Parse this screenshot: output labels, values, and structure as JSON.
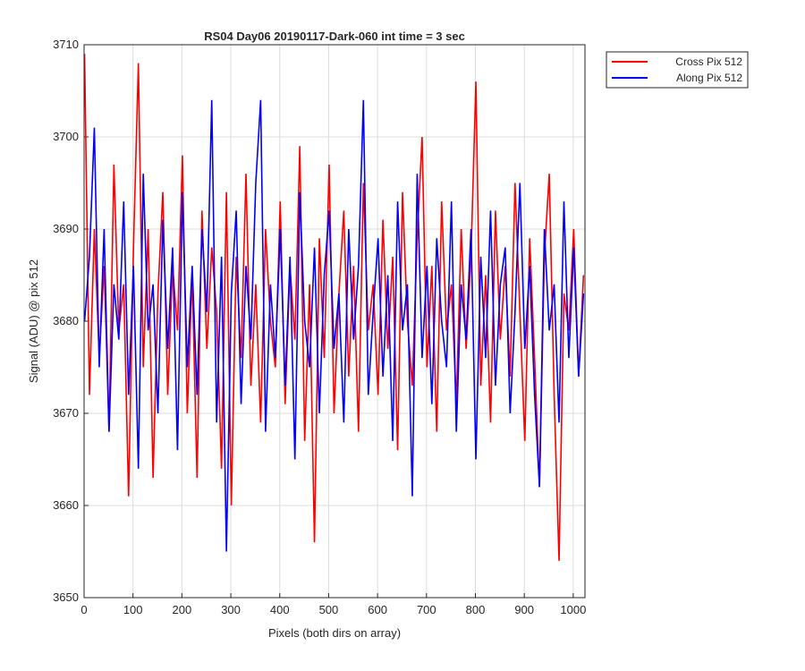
{
  "chart_data": {
    "type": "line",
    "title": "RS04 Day06 20190117-Dark-060 int time = 3 sec",
    "x_label": "Pixels (both dirs on array)",
    "y_label": "Signal (ADU) @ pix 512",
    "x": [
      1,
      11,
      21,
      31,
      41,
      51,
      61,
      71,
      81,
      91,
      101,
      111,
      121,
      131,
      141,
      151,
      161,
      171,
      181,
      191,
      201,
      211,
      221,
      231,
      241,
      251,
      261,
      271,
      281,
      291,
      301,
      311,
      321,
      331,
      341,
      351,
      361,
      371,
      381,
      391,
      401,
      411,
      421,
      431,
      441,
      451,
      461,
      471,
      481,
      491,
      501,
      511,
      521,
      531,
      541,
      551,
      561,
      571,
      581,
      591,
      601,
      611,
      621,
      631,
      641,
      651,
      661,
      671,
      681,
      691,
      701,
      711,
      721,
      731,
      741,
      751,
      761,
      771,
      781,
      791,
      801,
      811,
      821,
      831,
      841,
      851,
      861,
      871,
      881,
      891,
      901,
      911,
      921,
      931,
      941,
      951,
      961,
      971,
      981,
      991,
      1001,
      1011,
      1021
    ],
    "series": [
      {
        "name": "Cross Pix 512",
        "color": "#ff0000",
        "values": [
          3709,
          3672,
          3690,
          3676,
          3686,
          3668,
          3697,
          3679,
          3684,
          3661,
          3688,
          3708,
          3675,
          3690,
          3663,
          3683,
          3694,
          3672,
          3686,
          3679,
          3698,
          3670,
          3685,
          3663,
          3692,
          3677,
          3688,
          3681,
          3664,
          3694,
          3660,
          3687,
          3676,
          3696,
          3673,
          3684,
          3669,
          3690,
          3680,
          3675,
          3693,
          3671,
          3686,
          3678,
          3699,
          3667,
          3684,
          3656,
          3689,
          3676,
          3697,
          3670,
          3683,
          3692,
          3674,
          3686,
          3668,
          3695,
          3679,
          3684,
          3672,
          3691,
          3677,
          3687,
          3666,
          3694,
          3680,
          3673,
          3689,
          3700,
          3675,
          3686,
          3668,
          3693,
          3679,
          3684,
          3671,
          3690,
          3677,
          3687,
          3706,
          3673,
          3685,
          3669,
          3692,
          3678,
          3686,
          3674,
          3695,
          3681,
          3667,
          3689,
          3676,
          3662,
          3687,
          3696,
          3672,
          3654,
          3683,
          3679,
          3690,
          3674,
          3685
        ]
      },
      {
        "name": "Along Pix 512",
        "color": "#0000ff",
        "values": [
          3680,
          3687,
          3701,
          3675,
          3690,
          3668,
          3684,
          3678,
          3693,
          3672,
          3686,
          3664,
          3696,
          3679,
          3684,
          3670,
          3691,
          3677,
          3688,
          3666,
          3694,
          3675,
          3686,
          3672,
          3690,
          3681,
          3704,
          3669,
          3687,
          3655,
          3683,
          3692,
          3671,
          3686,
          3678,
          3695,
          3704,
          3668,
          3684,
          3676,
          3690,
          3673,
          3687,
          3665,
          3694,
          3680,
          3675,
          3688,
          3670,
          3685,
          3692,
          3677,
          3683,
          3669,
          3690,
          3678,
          3686,
          3704,
          3672,
          3681,
          3689,
          3674,
          3685,
          3667,
          3693,
          3679,
          3684,
          3661,
          3696,
          3676,
          3686,
          3671,
          3689,
          3680,
          3675,
          3693,
          3668,
          3684,
          3678,
          3690,
          3665,
          3687,
          3676,
          3692,
          3673,
          3684,
          3688,
          3670,
          3681,
          3695,
          3677,
          3686,
          3672,
          3662,
          3690,
          3679,
          3684,
          3669,
          3693,
          3676,
          3688,
          3674,
          3683
        ]
      }
    ],
    "xlim": [
      0,
      1024
    ],
    "xticks": [
      0,
      100,
      200,
      300,
      400,
      500,
      600,
      700,
      800,
      900,
      1000
    ],
    "ylim": [
      3650,
      3710
    ],
    "yticks": [
      3650,
      3660,
      3670,
      3680,
      3690,
      3700,
      3710
    ],
    "grid": true,
    "legend": "northeastoutside"
  }
}
